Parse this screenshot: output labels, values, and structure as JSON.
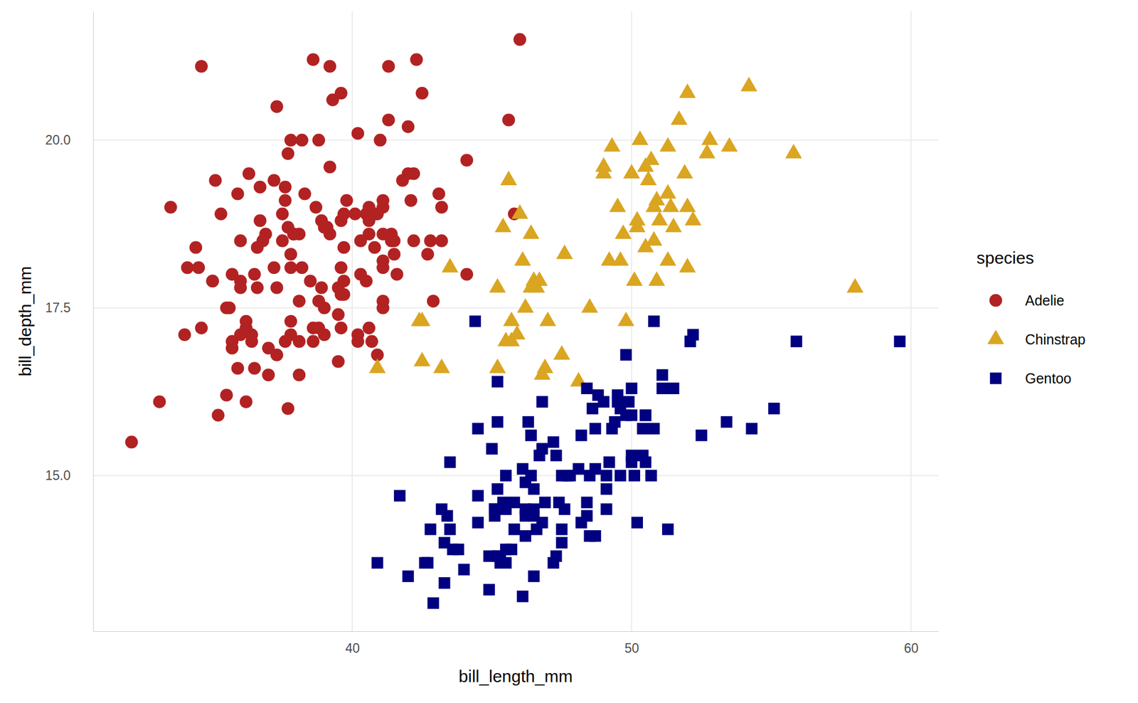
{
  "chart_data": {
    "type": "scatter",
    "x_label": "bill_length_mm",
    "y_label": "bill_depth_mm",
    "legend_title": "species",
    "legend": "right",
    "grid": true,
    "xlim": [
      30.725,
      60.975
    ],
    "ylim": [
      12.68,
      21.92
    ],
    "xticks": [
      40,
      50,
      60
    ],
    "yticks": [
      {
        "value": 15,
        "label": "15.0"
      },
      {
        "value": 17.5,
        "label": "17.5"
      },
      {
        "value": 20,
        "label": "20.0"
      }
    ],
    "series": [
      {
        "name": "Adelie",
        "color": "#b22222",
        "marker": "circle",
        "x": [
          39.1,
          39.5,
          40.3,
          36.7,
          39.3,
          38.9,
          39.2,
          34.1,
          42.0,
          37.8,
          37.8,
          41.1,
          38.6,
          34.6,
          36.6,
          38.7,
          42.5,
          34.4,
          46.0,
          37.8,
          37.7,
          35.9,
          38.2,
          38.8,
          35.3,
          40.6,
          40.5,
          37.9,
          40.5,
          39.5,
          37.2,
          39.5,
          40.9,
          36.4,
          39.2,
          38.8,
          42.2,
          37.6,
          39.8,
          36.5,
          40.8,
          36.0,
          44.1,
          37.0,
          39.6,
          41.1,
          37.5,
          36.0,
          42.3,
          39.6,
          40.1,
          35.0,
          42.0,
          34.5,
          41.4,
          39.0,
          40.6,
          36.5,
          37.6,
          35.7,
          41.3,
          37.6,
          41.1,
          36.4,
          41.6,
          35.5,
          41.1,
          35.9,
          41.8,
          33.5,
          39.7,
          39.6,
          45.8,
          35.5,
          42.8,
          40.9,
          37.2,
          36.2,
          42.1,
          34.6,
          42.9,
          36.7,
          35.1,
          37.3,
          41.3,
          36.3,
          36.9,
          38.3,
          38.9,
          35.7,
          41.1,
          34.0,
          39.6,
          36.2,
          40.8,
          38.1,
          40.3,
          33.1,
          43.2,
          35.0,
          41.0,
          37.7,
          37.8,
          37.9,
          39.7,
          38.6,
          38.2,
          38.1,
          43.2,
          38.1,
          45.6,
          39.7,
          42.2,
          39.6,
          42.7,
          38.6,
          37.3,
          35.7,
          41.1,
          36.2,
          37.7,
          40.2,
          41.4,
          35.2,
          40.6,
          38.8,
          41.5,
          39.0,
          44.1,
          38.5,
          43.1,
          36.8,
          37.5,
          38.1,
          41.1,
          35.6,
          40.2,
          37.0,
          39.7,
          40.2,
          40.6,
          32.1,
          40.7,
          37.3,
          39.0,
          39.2,
          36.6,
          36.0,
          37.8,
          36.0,
          41.5
        ],
        "values": [
          18.7,
          17.4,
          18.0,
          19.3,
          20.6,
          17.8,
          19.6,
          18.1,
          20.2,
          17.1,
          17.3,
          17.6,
          21.2,
          21.1,
          17.8,
          19.0,
          20.7,
          18.4,
          21.5,
          18.3,
          18.7,
          19.2,
          18.1,
          17.2,
          18.9,
          18.6,
          17.9,
          18.6,
          18.9,
          16.7,
          18.1,
          17.8,
          18.9,
          17.0,
          21.1,
          20.0,
          18.5,
          19.3,
          19.1,
          18.0,
          18.4,
          18.5,
          19.7,
          16.9,
          18.8,
          19.0,
          18.9,
          17.9,
          21.2,
          17.7,
          18.9,
          17.9,
          19.5,
          18.1,
          18.6,
          17.5,
          18.8,
          16.6,
          19.1,
          16.9,
          21.1,
          17.0,
          18.2,
          17.1,
          18.0,
          16.2,
          19.1,
          16.6,
          19.4,
          19.0,
          18.4,
          17.2,
          18.9,
          17.5,
          18.5,
          16.8,
          19.4,
          16.1,
          19.1,
          17.2,
          17.6,
          18.8,
          19.4,
          17.8,
          20.3,
          19.5,
          18.6,
          19.2,
          18.8,
          18.0,
          18.1,
          17.1,
          18.1,
          17.3,
          18.9,
          18.6,
          18.5,
          16.1,
          18.5,
          17.9,
          20.0,
          16.0,
          20.0,
          18.6,
          18.9,
          17.2,
          20.0,
          17.0,
          19.0,
          16.5,
          20.3,
          17.7,
          19.5,
          20.7,
          18.3,
          17.0,
          20.5,
          17.0,
          18.6,
          17.2,
          19.8,
          17.0,
          18.5,
          15.9,
          19.0,
          17.6,
          18.3,
          17.1,
          18.0,
          17.9,
          19.2,
          18.5,
          18.5,
          17.6,
          17.5,
          17.5,
          20.1,
          16.5,
          17.9,
          17.1,
          17.2,
          15.5,
          17.0,
          16.8,
          18.7,
          18.6,
          18.4,
          17.8,
          18.1,
          17.1,
          18.5
        ]
      },
      {
        "name": "Chinstrap",
        "color": "#daa520",
        "marker": "triangle",
        "x": [
          46.5,
          50.0,
          51.3,
          45.4,
          52.7,
          45.2,
          46.1,
          51.3,
          46.0,
          51.3,
          46.6,
          51.7,
          47.0,
          52.0,
          45.9,
          50.5,
          50.3,
          58.0,
          46.4,
          49.2,
          42.4,
          48.5,
          43.2,
          50.6,
          46.7,
          52.0,
          50.5,
          49.5,
          46.4,
          52.8,
          40.9,
          54.2,
          42.5,
          51.0,
          49.7,
          47.5,
          47.6,
          52.0,
          46.9,
          53.5,
          49.0,
          46.2,
          50.9,
          45.5,
          50.9,
          50.8,
          50.1,
          49.0,
          51.5,
          49.8,
          48.1,
          51.4,
          45.7,
          50.7,
          42.5,
          52.2,
          45.2,
          49.3,
          50.2,
          45.6,
          51.9,
          46.8,
          45.7,
          55.8,
          43.5,
          49.6,
          50.8,
          50.2
        ],
        "values": [
          17.9,
          19.5,
          19.2,
          18.7,
          19.8,
          17.8,
          18.2,
          18.2,
          18.9,
          19.9,
          17.8,
          20.3,
          17.3,
          18.1,
          17.1,
          19.6,
          20.0,
          17.8,
          18.6,
          18.2,
          17.3,
          17.5,
          16.6,
          19.4,
          17.9,
          19.0,
          18.4,
          19.0,
          17.8,
          20.0,
          16.6,
          20.8,
          16.7,
          18.8,
          18.6,
          16.8,
          18.3,
          20.7,
          16.6,
          19.9,
          19.5,
          17.5,
          19.1,
          17.0,
          17.9,
          18.5,
          17.9,
          19.6,
          18.7,
          17.3,
          16.4,
          19.0,
          17.3,
          19.7,
          17.3,
          18.8,
          16.6,
          19.9,
          18.8,
          19.4,
          19.5,
          16.5,
          17.0,
          19.8,
          18.1,
          18.2,
          19.0,
          18.7
        ]
      },
      {
        "name": "Gentoo",
        "color": "#000080",
        "marker": "square",
        "x": [
          46.1,
          50.0,
          48.7,
          50.0,
          47.6,
          46.5,
          45.4,
          46.7,
          43.3,
          46.8,
          40.9,
          49.0,
          45.5,
          48.4,
          45.8,
          49.3,
          42.0,
          49.2,
          46.2,
          48.7,
          50.2,
          45.1,
          46.5,
          46.3,
          42.9,
          46.1,
          44.5,
          47.8,
          48.2,
          50.0,
          47.3,
          42.8,
          45.1,
          59.6,
          49.1,
          48.4,
          42.6,
          44.4,
          44.0,
          48.7,
          42.7,
          49.6,
          45.3,
          49.6,
          50.5,
          43.6,
          45.5,
          50.5,
          44.9,
          45.2,
          46.6,
          48.5,
          45.1,
          50.1,
          46.5,
          45.0,
          43.8,
          45.5,
          43.2,
          50.4,
          45.3,
          46.2,
          45.7,
          54.3,
          45.8,
          49.8,
          46.2,
          49.5,
          43.5,
          50.7,
          47.7,
          46.4,
          48.2,
          46.5,
          46.4,
          48.6,
          47.5,
          51.1,
          45.2,
          45.2,
          49.1,
          52.5,
          47.4,
          50.0,
          44.9,
          50.8,
          43.4,
          51.3,
          47.5,
          52.1,
          47.5,
          52.2,
          45.5,
          49.5,
          44.5,
          50.8,
          49.4,
          46.9,
          48.4,
          51.1,
          48.5,
          55.9,
          47.2,
          49.1,
          47.3,
          46.8,
          41.7,
          53.4,
          43.3,
          48.1,
          50.5,
          49.8,
          43.5,
          51.5,
          46.2,
          55.1,
          44.5,
          48.8,
          47.2,
          46.8,
          50.4,
          45.2,
          49.9
        ],
        "values": [
          13.2,
          16.3,
          14.1,
          15.2,
          14.5,
          13.5,
          14.6,
          15.3,
          13.4,
          15.4,
          13.7,
          16.1,
          13.7,
          14.6,
          14.6,
          15.7,
          13.5,
          15.2,
          14.5,
          15.1,
          14.3,
          14.5,
          14.5,
          15.8,
          13.1,
          15.1,
          14.3,
          15.0,
          14.3,
          15.3,
          15.3,
          14.2,
          14.5,
          17.0,
          14.8,
          16.3,
          13.7,
          17.3,
          13.6,
          15.7,
          13.7,
          16.0,
          13.7,
          15.0,
          15.9,
          13.9,
          13.9,
          15.9,
          13.3,
          15.8,
          14.2,
          14.1,
          14.4,
          15.0,
          14.4,
          15.4,
          13.9,
          15.0,
          14.5,
          15.3,
          13.8,
          14.9,
          13.9,
          15.7,
          14.2,
          16.8,
          14.4,
          16.2,
          14.2,
          15.0,
          15.0,
          15.6,
          15.6,
          14.8,
          15.0,
          16.0,
          14.2,
          16.3,
          13.8,
          16.4,
          14.5,
          15.6,
          14.6,
          15.9,
          13.8,
          17.3,
          14.4,
          14.2,
          14.0,
          17.0,
          15.0,
          17.1,
          14.5,
          16.1,
          14.7,
          15.7,
          15.8,
          14.6,
          14.4,
          16.5,
          15.0,
          17.0,
          15.5,
          15.0,
          13.8,
          16.1,
          14.7,
          15.8,
          14.0,
          15.1,
          15.2,
          15.9,
          15.2,
          16.3,
          14.1,
          16.0,
          15.7,
          16.2,
          13.7,
          14.3,
          15.7,
          14.8,
          16.1
        ]
      }
    ]
  }
}
